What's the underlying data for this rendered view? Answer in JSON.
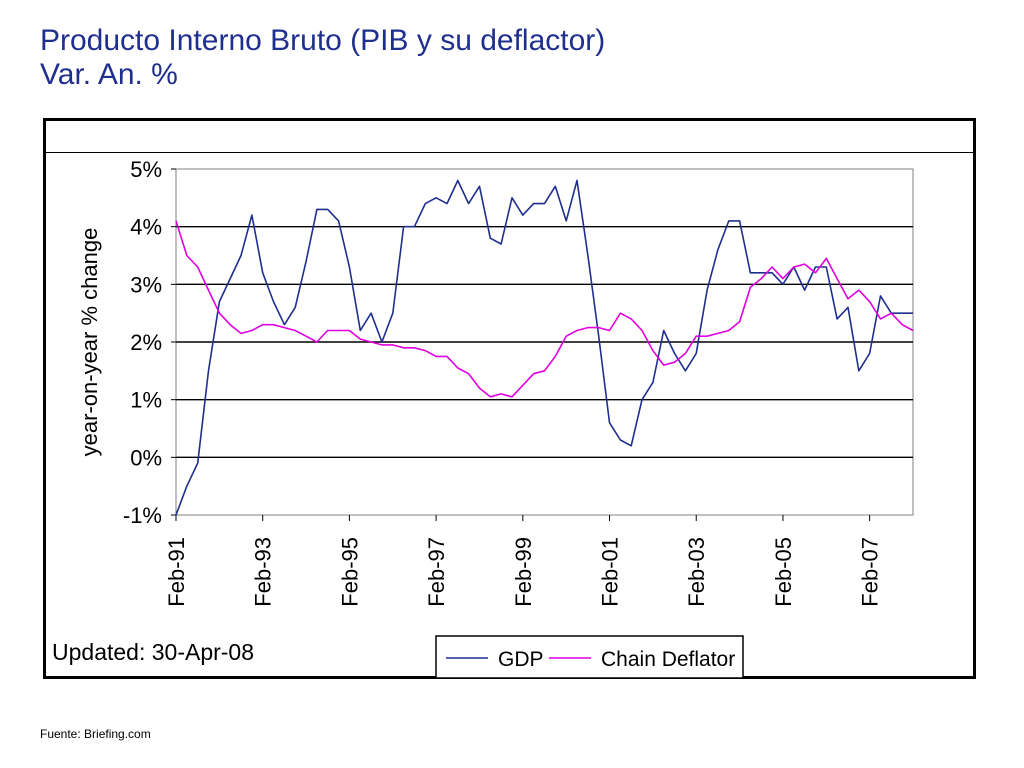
{
  "header": {
    "title": "Producto Interno Bruto (PIB y su deflactor)",
    "subtitle": "Var. An. %"
  },
  "source": "Fuente: Briefing.com",
  "chart_data": {
    "type": "line",
    "title": "",
    "xlabel": "",
    "ylabel": "year-on-year % change",
    "ylim": [
      -1,
      5
    ],
    "yticks": [
      5,
      4,
      3,
      2,
      1,
      0,
      -1
    ],
    "ytick_labels": [
      "5%",
      "4%",
      "3%",
      "2%",
      "1%",
      "0%",
      "-1%"
    ],
    "xtick_labels": [
      "Feb-91",
      "Feb-93",
      "Feb-95",
      "Feb-97",
      "Feb-99",
      "Feb-01",
      "Feb-03",
      "Feb-05",
      "Feb-07"
    ],
    "xtick_years": [
      1991,
      1993,
      1995,
      1997,
      1999,
      2001,
      2003,
      2005,
      2007
    ],
    "grid": true,
    "legend_position": "bottom-right",
    "annotation": "Updated: 30-Apr-08",
    "series": [
      {
        "name": "GDP",
        "color": "#1f2f8f",
        "x": [
          1991.08,
          1991.33,
          1991.58,
          1991.83,
          1992.08,
          1992.33,
          1992.58,
          1992.83,
          1993.08,
          1993.33,
          1993.58,
          1993.83,
          1994.08,
          1994.33,
          1994.58,
          1994.83,
          1995.08,
          1995.33,
          1995.58,
          1995.83,
          1996.08,
          1996.33,
          1996.58,
          1996.83,
          1997.08,
          1997.33,
          1997.58,
          1997.83,
          1998.08,
          1998.33,
          1998.58,
          1998.83,
          1999.08,
          1999.33,
          1999.58,
          1999.83,
          2000.08,
          2000.33,
          2000.58,
          2000.83,
          2001.08,
          2001.33,
          2001.58,
          2001.83,
          2002.08,
          2002.33,
          2002.58,
          2002.83,
          2003.08,
          2003.33,
          2003.58,
          2003.83,
          2004.08,
          2004.33,
          2004.58,
          2004.83,
          2005.08,
          2005.33,
          2005.58,
          2005.83,
          2006.08,
          2006.33,
          2006.58,
          2006.83,
          2007.08,
          2007.33,
          2007.58,
          2007.83,
          2008.08
        ],
        "y": [
          -1.0,
          -0.5,
          -0.1,
          1.5,
          2.7,
          3.1,
          3.5,
          4.2,
          3.2,
          2.7,
          2.3,
          2.6,
          3.4,
          4.3,
          4.3,
          4.1,
          3.3,
          2.2,
          2.5,
          2.0,
          2.5,
          4.0,
          4.0,
          4.4,
          4.5,
          4.4,
          4.8,
          4.4,
          4.7,
          3.8,
          3.7,
          4.5,
          4.2,
          4.4,
          4.4,
          4.7,
          4.1,
          4.8,
          3.5,
          2.1,
          0.6,
          0.3,
          0.2,
          1.0,
          1.3,
          2.2,
          1.8,
          1.5,
          1.8,
          2.9,
          3.6,
          4.1,
          4.1,
          3.2,
          3.2,
          3.2,
          3.0,
          3.3,
          2.9,
          3.3,
          3.3,
          2.4,
          2.6,
          1.5,
          1.8,
          2.8,
          2.5,
          2.5,
          2.5
        ]
      },
      {
        "name": "Chain Deflator",
        "color": "#e000e0",
        "x": [
          1991.08,
          1991.33,
          1991.58,
          1991.83,
          1992.08,
          1992.33,
          1992.58,
          1992.83,
          1993.08,
          1993.33,
          1993.58,
          1993.83,
          1994.08,
          1994.33,
          1994.58,
          1994.83,
          1995.08,
          1995.33,
          1995.58,
          1995.83,
          1996.08,
          1996.33,
          1996.58,
          1996.83,
          1997.08,
          1997.33,
          1997.58,
          1997.83,
          1998.08,
          1998.33,
          1998.58,
          1998.83,
          1999.08,
          1999.33,
          1999.58,
          1999.83,
          2000.08,
          2000.33,
          2000.58,
          2000.83,
          2001.08,
          2001.33,
          2001.58,
          2001.83,
          2002.08,
          2002.33,
          2002.58,
          2002.83,
          2003.08,
          2003.33,
          2003.58,
          2003.83,
          2004.08,
          2004.33,
          2004.58,
          2004.83,
          2005.08,
          2005.33,
          2005.58,
          2005.83,
          2006.08,
          2006.33,
          2006.58,
          2006.83,
          2007.08,
          2007.33,
          2007.58,
          2007.83,
          2008.08
        ],
        "y": [
          4.1,
          3.5,
          3.3,
          2.9,
          2.5,
          2.3,
          2.15,
          2.2,
          2.3,
          2.3,
          2.25,
          2.2,
          2.1,
          2.0,
          2.2,
          2.2,
          2.2,
          2.05,
          2.0,
          1.95,
          1.95,
          1.9,
          1.9,
          1.85,
          1.75,
          1.75,
          1.55,
          1.45,
          1.2,
          1.05,
          1.1,
          1.05,
          1.25,
          1.45,
          1.5,
          1.75,
          2.1,
          2.2,
          2.25,
          2.25,
          2.2,
          2.5,
          2.4,
          2.2,
          1.85,
          1.6,
          1.65,
          1.8,
          2.1,
          2.1,
          2.15,
          2.2,
          2.35,
          2.95,
          3.1,
          3.3,
          3.1,
          3.3,
          3.35,
          3.2,
          3.45,
          3.1,
          2.75,
          2.9,
          2.7,
          2.4,
          2.5,
          2.3,
          2.2
        ]
      }
    ]
  }
}
